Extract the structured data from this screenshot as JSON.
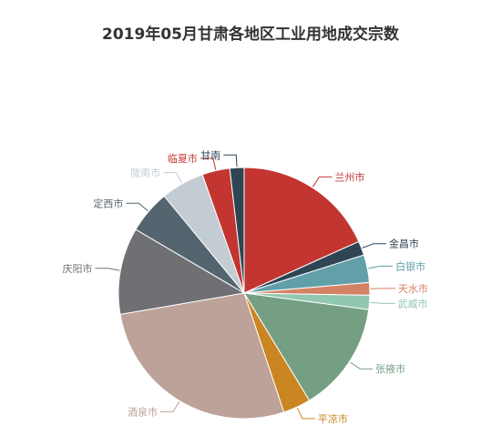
{
  "chart_data": {
    "type": "pie",
    "title": "2019年05月甘肃各地区工业用地成交宗数",
    "slices": [
      {
        "label": "兰州市",
        "value": 18,
        "color": "#c23531"
      },
      {
        "label": "金昌市",
        "value": 1.8,
        "color": "#2f4554"
      },
      {
        "label": "白银市",
        "value": 3.5,
        "color": "#61a0a8"
      },
      {
        "label": "天水市",
        "value": 1.6,
        "color": "#d48265"
      },
      {
        "label": "武威市",
        "value": 1.8,
        "color": "#91c7ae"
      },
      {
        "label": "张掖市",
        "value": 14,
        "color": "#749f83"
      },
      {
        "label": "平凉市",
        "value": 3.5,
        "color": "#ca8622"
      },
      {
        "label": "酒泉市",
        "value": 27,
        "color": "#bda29a"
      },
      {
        "label": "庆阳市",
        "value": 11,
        "color": "#6e7074"
      },
      {
        "label": "定西市",
        "value": 5.5,
        "color": "#546570"
      },
      {
        "label": "陇南市",
        "value": 5.5,
        "color": "#c4ccd3"
      },
      {
        "label": "临夏市",
        "value": 3.5,
        "color": "#c23531"
      },
      {
        "label": "甘南",
        "value": 1.8,
        "color": "#2f4554"
      }
    ]
  }
}
